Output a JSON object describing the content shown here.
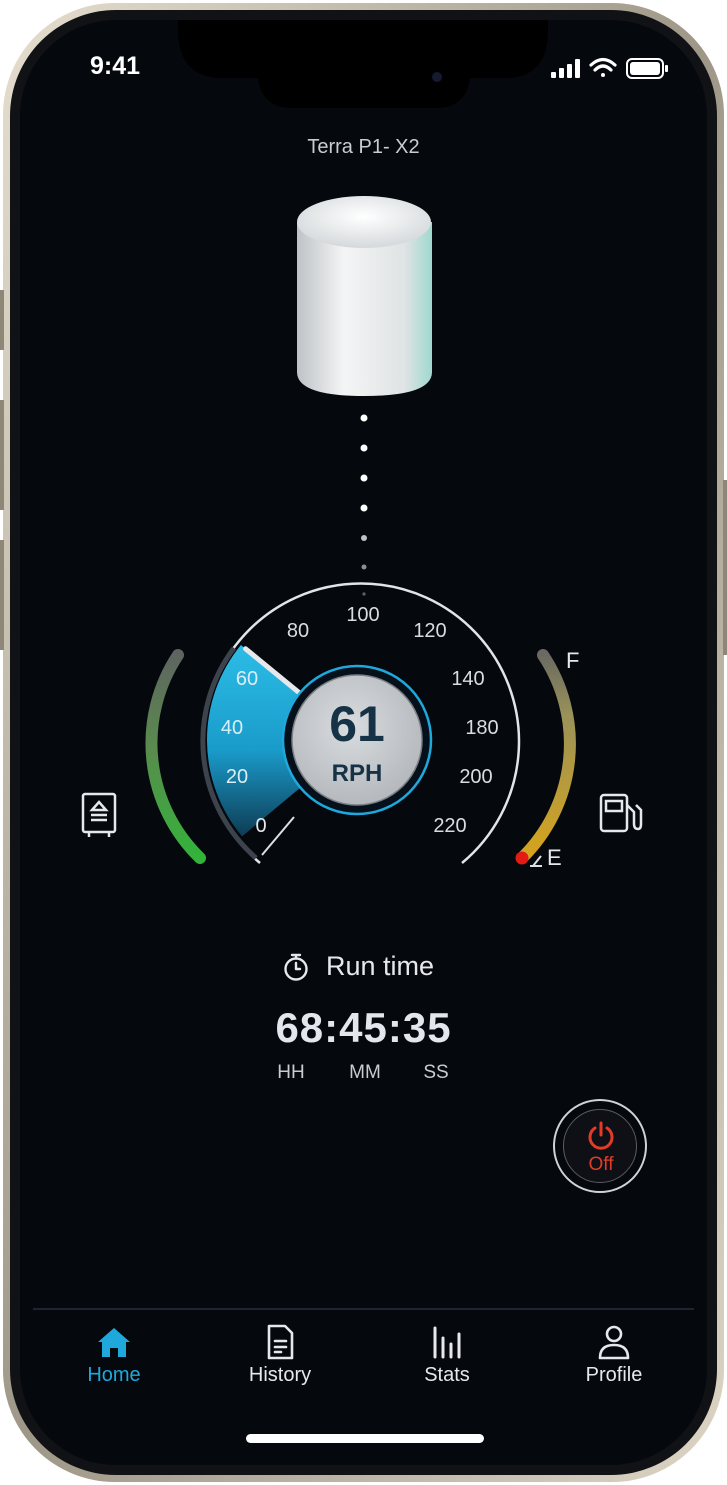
{
  "status_bar": {
    "time": "9:41"
  },
  "device": {
    "name": "Terra P1- X2"
  },
  "gauge": {
    "value": "61",
    "unit": "RPH",
    "ticks_left": [
      "0",
      "20",
      "40",
      "60",
      "80"
    ],
    "ticks_right": [
      "100",
      "120",
      "140",
      "180",
      "200",
      "220"
    ],
    "fill_value": 61,
    "fuel_full_label": "F",
    "fuel_empty_label": "E"
  },
  "runtime": {
    "label": "Run time",
    "value": "68:45:35",
    "units": [
      "HH",
      "MM",
      "SS"
    ]
  },
  "power": {
    "label": "Off",
    "color": "#e23c28"
  },
  "nav": {
    "items": [
      {
        "label": "Home",
        "icon": "home-icon",
        "active": true
      },
      {
        "label": "History",
        "icon": "document-icon",
        "active": false
      },
      {
        "label": "Stats",
        "icon": "bar-chart-icon",
        "active": false
      },
      {
        "label": "Profile",
        "icon": "person-icon",
        "active": false
      }
    ]
  },
  "colors": {
    "accent": "#1ea8dc",
    "background": "#05080d",
    "off": "#e23c28"
  }
}
